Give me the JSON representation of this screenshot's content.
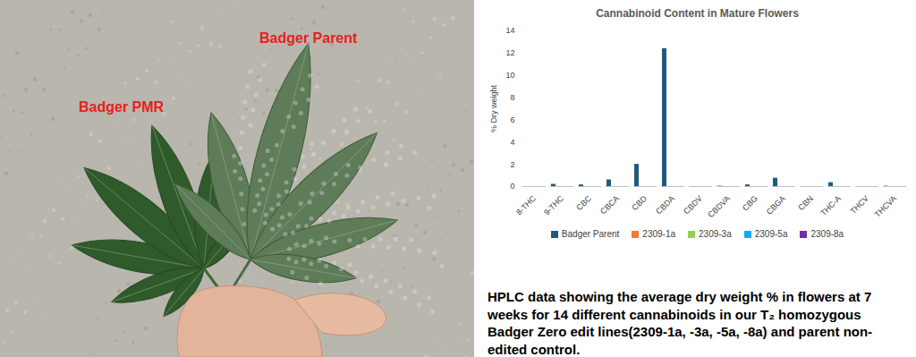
{
  "photo": {
    "labels": [
      "Badger PMR",
      "Badger Parent"
    ]
  },
  "chart_data": {
    "type": "bar",
    "title": "Cannabinoid Content in Mature Flowers",
    "y_label": "% Dry weight",
    "caption": "HPLC data showing the average dry weight % in flowers at 7 weeks for 14 different cannabinoids in our T₂ homozygous Badger Zero edit lines(2309-1a, -3a, -5a, -8a) and parent non-edited control.",
    "categories": [
      "8-THC",
      "9-THC",
      "CBC",
      "CBCA",
      "CBD",
      "CBDA",
      "CBDV",
      "CBDVA",
      "CBG",
      "CBGA",
      "CBN",
      "THC-A",
      "THCV",
      "THCVA"
    ],
    "series": [
      {
        "name": "Badger Parent",
        "color": "#215a7d",
        "values": [
          0,
          0.2,
          0.15,
          0.6,
          2.0,
          12.4,
          0,
          0.03,
          0.15,
          0.75,
          0,
          0.35,
          0,
          0.03
        ]
      },
      {
        "name": "2309-1a",
        "color": "#ed7d31",
        "values": [
          0,
          0,
          0,
          0,
          0,
          0,
          0,
          0,
          0,
          0,
          0,
          0,
          0,
          0
        ]
      },
      {
        "name": "2309-3a",
        "color": "#92d050",
        "values": [
          0,
          0,
          0,
          0,
          0,
          0,
          0,
          0,
          0,
          0,
          0,
          0,
          0,
          0
        ]
      },
      {
        "name": "2309-5a",
        "color": "#00b0f0",
        "values": [
          0,
          0,
          0,
          0,
          0,
          0,
          0,
          0,
          0,
          0,
          0,
          0,
          0,
          0
        ]
      },
      {
        "name": "2309-8a",
        "color": "#7030a0",
        "values": [
          0,
          0,
          0,
          0,
          0,
          0,
          0,
          0,
          0,
          0,
          0,
          0,
          0,
          0
        ]
      }
    ],
    "ylim": [
      0,
      14
    ],
    "yticks": [
      0,
      2,
      4,
      6,
      8,
      10,
      12,
      14
    ],
    "grid": false,
    "legend": "bottom"
  }
}
